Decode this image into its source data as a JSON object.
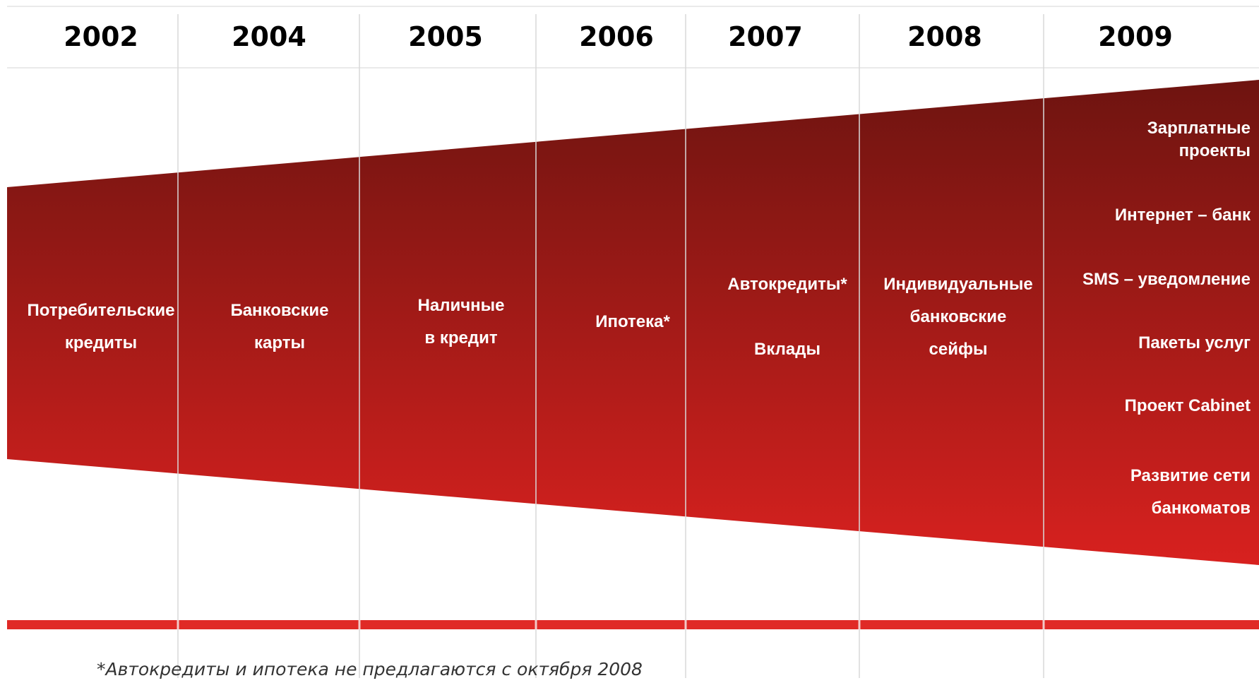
{
  "colors": {
    "band_top": "#6e1410",
    "band_bottom": "#d8211f",
    "baseline": "#e02a26",
    "divider": "#d9d9d9",
    "text_on_band": "#ffffff",
    "year_text": "#000000"
  },
  "years": [
    "2002",
    "2004",
    "2005",
    "2006",
    "2007",
    "2008",
    "2009"
  ],
  "milestones": [
    {
      "lines": [
        "Потребительские",
        "кредиты"
      ]
    },
    {
      "lines": [
        "Банковские",
        "карты"
      ]
    },
    {
      "lines": [
        "Наличные",
        "в  кредит"
      ]
    },
    {
      "lines": [
        "Ипотека*"
      ]
    },
    {
      "lines": [
        "Автокредиты*",
        "",
        "Вклады"
      ]
    },
    {
      "lines": [
        "Индивидуальные",
        "банковские",
        "сейфы"
      ]
    }
  ],
  "services_2009": [
    {
      "lines": [
        "Зарплатные",
        "проекты"
      ]
    },
    {
      "lines": [
        "Интернет – банк"
      ]
    },
    {
      "lines": [
        "SMS – уведомление"
      ]
    },
    {
      "lines": [
        "Пакеты услуг"
      ]
    },
    {
      "lines": [
        "Проект Cabinet"
      ]
    },
    {
      "lines": [
        "Развитие сети",
        "банкоматов"
      ]
    }
  ],
  "footnote": "*Автокредиты и ипотека не предлагаются с октября 2008"
}
